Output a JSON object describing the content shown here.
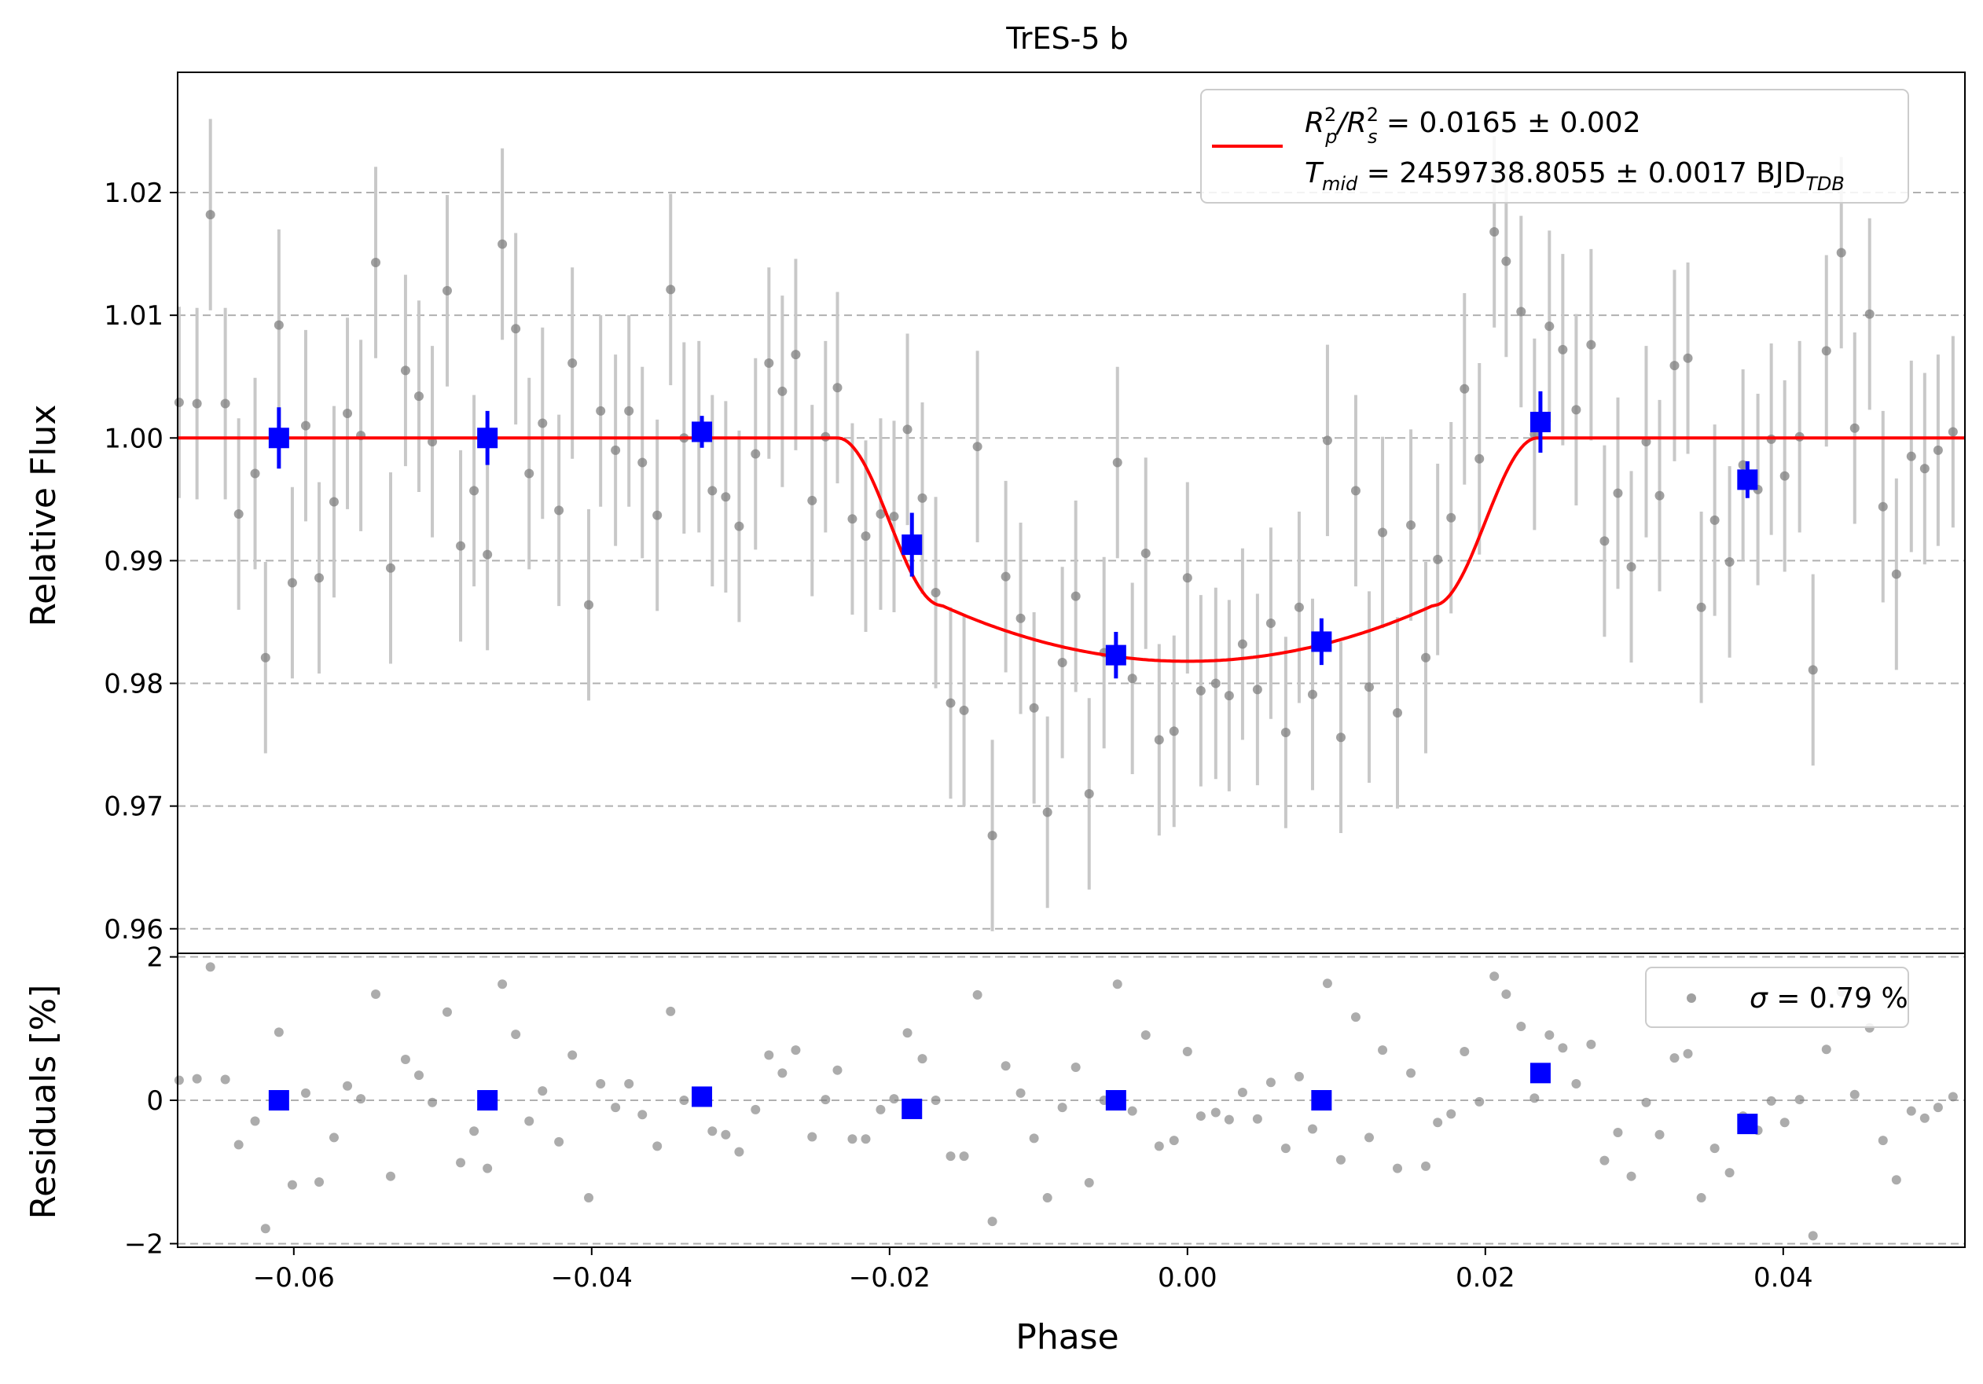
{
  "chart_data": {
    "type": "scatter",
    "title": "TrES-5 b",
    "xlabel": "Phase",
    "ylabel_top": "Relative Flux",
    "ylabel_bottom": "Residuals [%]",
    "xlim": [
      -0.0678,
      0.0522
    ],
    "ylim_top": [
      0.958,
      1.0298
    ],
    "ylim_bottom": [
      -2.05,
      2.05
    ],
    "x_ticks": [
      -0.06,
      -0.04,
      -0.02,
      0.0,
      0.02,
      0.04
    ],
    "x_tick_labels": [
      "−0.06",
      "−0.04",
      "−0.02",
      "0.00",
      "0.02",
      "0.04"
    ],
    "y_ticks_top": [
      0.96,
      0.97,
      0.98,
      0.99,
      1.0,
      1.01,
      1.02
    ],
    "y_tick_labels_top": [
      "0.96",
      "0.97",
      "0.98",
      "0.99",
      "1.00",
      "1.01",
      "1.02"
    ],
    "y_ticks_bottom": [
      -2,
      0,
      2
    ],
    "y_tick_labels_bottom": [
      "−2",
      "0",
      "2"
    ],
    "grid": "horizontal dashed",
    "colors": {
      "data": "#808080",
      "errorbar": "#c8c8c8",
      "binned": "#0000ff",
      "model": "#ff0000",
      "grid": "#b0b0b0"
    },
    "legend_top": {
      "placement": "top-right",
      "line1_a": "R",
      "line1_a_sup": "2",
      "line1_a_sub": "p",
      "line1_b": "/R",
      "line1_b_sup": "2",
      "line1_b_sub": "s",
      "line1_value": " = 0.0165 ± 0.002",
      "line2_a": "T",
      "line2_a_sub": "mid",
      "line2_value": " = 2459738.8055 ± 0.0017 BJD",
      "line2_value_sub": "TDB"
    },
    "legend_bottom": {
      "placement": "top-right",
      "sigma": "σ",
      "label": " = 0.79 %"
    },
    "raw_points": [
      [
        -0.0677,
        1.0029,
        0.28
      ],
      [
        -0.0665,
        1.0028,
        0.3
      ],
      [
        -0.0656,
        1.0182,
        1.86
      ],
      [
        -0.0646,
        1.0028,
        0.29
      ],
      [
        -0.0637,
        0.9938,
        -0.62
      ],
      [
        -0.0626,
        0.9971,
        -0.29
      ],
      [
        -0.0619,
        0.9821,
        -1.79
      ],
      [
        -0.061,
        1.0092,
        0.95
      ],
      [
        -0.0601,
        0.9882,
        -1.18
      ],
      [
        -0.0592,
        1.001,
        0.1
      ],
      [
        -0.0583,
        0.9886,
        -1.14
      ],
      [
        -0.0573,
        0.9948,
        -0.52
      ],
      [
        -0.0564,
        1.002,
        0.2
      ],
      [
        -0.0555,
        1.0002,
        0.02
      ],
      [
        -0.0545,
        1.0143,
        1.48
      ],
      [
        -0.0535,
        0.9894,
        -1.06
      ],
      [
        -0.0525,
        1.0055,
        0.57
      ],
      [
        -0.0516,
        1.0034,
        0.35
      ],
      [
        -0.0507,
        0.9997,
        -0.03
      ],
      [
        -0.0497,
        1.012,
        1.23
      ],
      [
        -0.0488,
        0.9912,
        -0.87
      ],
      [
        -0.0479,
        0.9957,
        -0.43
      ],
      [
        -0.047,
        0.9905,
        -0.95
      ],
      [
        -0.046,
        1.0158,
        1.62
      ],
      [
        -0.0451,
        1.0089,
        0.92
      ],
      [
        -0.0442,
        0.9971,
        -0.29
      ],
      [
        -0.0433,
        1.0012,
        0.13
      ],
      [
        -0.0422,
        0.9941,
        -0.58
      ],
      [
        -0.0413,
        1.0061,
        0.63
      ],
      [
        -0.0402,
        0.9864,
        -1.36
      ],
      [
        -0.0394,
        1.0022,
        0.23
      ],
      [
        -0.0384,
        0.999,
        -0.1
      ],
      [
        -0.0375,
        1.0022,
        0.23
      ],
      [
        -0.0366,
        0.998,
        -0.2
      ],
      [
        -0.0356,
        0.9937,
        -0.64
      ],
      [
        -0.0347,
        1.0121,
        1.24
      ],
      [
        -0.0338,
        1.0,
        0.0
      ],
      [
        -0.0328,
        1.0001,
        0.01
      ],
      [
        -0.0319,
        0.9957,
        -0.43
      ],
      [
        -0.031,
        0.9952,
        -0.48
      ],
      [
        -0.0301,
        0.9928,
        -0.72
      ],
      [
        -0.029,
        0.9987,
        -0.13
      ],
      [
        -0.0281,
        1.0061,
        0.63
      ],
      [
        -0.0272,
        1.0038,
        0.38
      ],
      [
        -0.0263,
        1.0068,
        0.7
      ],
      [
        -0.0252,
        0.9949,
        -0.51
      ],
      [
        -0.0243,
        1.0001,
        0.01
      ],
      [
        -0.0235,
        1.0041,
        0.42
      ],
      [
        -0.0225,
        0.9934,
        -0.54
      ],
      [
        -0.0216,
        0.992,
        -0.54
      ],
      [
        -0.0206,
        0.9938,
        -0.13
      ],
      [
        -0.0197,
        0.9936,
        0.02
      ],
      [
        -0.0188,
        1.0007,
        0.94
      ],
      [
        -0.0178,
        0.9951,
        0.58
      ],
      [
        -0.0169,
        0.9874,
        0.0
      ],
      [
        -0.0159,
        0.9784,
        -0.78
      ],
      [
        -0.015,
        0.9778,
        -0.78
      ],
      [
        -0.0141,
        0.9993,
        1.47
      ],
      [
        -0.0131,
        0.9676,
        -1.69
      ],
      [
        -0.0122,
        0.9887,
        0.48
      ],
      [
        -0.0112,
        0.9853,
        0.1
      ],
      [
        -0.0103,
        0.978,
        -0.53
      ],
      [
        -0.0094,
        0.9695,
        -1.36
      ],
      [
        -0.0084,
        0.9817,
        -0.1
      ],
      [
        -0.0075,
        0.9871,
        0.46
      ],
      [
        -0.0066,
        0.971,
        -1.15
      ],
      [
        -0.0056,
        0.9825,
        0.0
      ],
      [
        -0.0047,
        0.998,
        1.62
      ],
      [
        -0.0037,
        0.9804,
        -0.15
      ],
      [
        -0.0028,
        0.9906,
        0.91
      ],
      [
        -0.0019,
        0.9754,
        -0.64
      ],
      [
        -0.0009,
        0.9761,
        -0.56
      ],
      [
        0.0,
        0.9886,
        0.68
      ],
      [
        0.0009,
        0.9794,
        -0.22
      ],
      [
        0.0019,
        0.98,
        -0.17
      ],
      [
        0.0028,
        0.979,
        -0.27
      ],
      [
        0.0037,
        0.9832,
        0.11
      ],
      [
        0.0047,
        0.9795,
        -0.26
      ],
      [
        0.0056,
        0.9849,
        0.25
      ],
      [
        0.0066,
        0.976,
        -0.67
      ],
      [
        0.0075,
        0.9862,
        0.33
      ],
      [
        0.0084,
        0.9791,
        -0.4
      ],
      [
        0.0094,
        0.9998,
        1.63
      ],
      [
        0.0103,
        0.9756,
        -0.83
      ],
      [
        0.0113,
        0.9957,
        1.16
      ],
      [
        0.0122,
        0.9797,
        -0.52
      ],
      [
        0.0131,
        0.9923,
        0.7
      ],
      [
        0.0141,
        0.9776,
        -0.95
      ],
      [
        0.015,
        0.9929,
        0.38
      ],
      [
        0.016,
        0.9821,
        -0.92
      ],
      [
        0.0168,
        0.9901,
        -0.31
      ],
      [
        0.0177,
        0.9935,
        -0.19
      ],
      [
        0.0186,
        1.004,
        0.68
      ],
      [
        0.0196,
        0.9983,
        -0.02
      ],
      [
        0.0206,
        1.0168,
        1.73
      ],
      [
        0.0214,
        1.0144,
        1.48
      ],
      [
        0.0224,
        1.0103,
        1.03
      ],
      [
        0.0233,
        1.0003,
        0.03
      ],
      [
        0.0243,
        1.0091,
        0.91
      ],
      [
        0.0252,
        1.0072,
        0.73
      ],
      [
        0.0261,
        1.0023,
        0.23
      ],
      [
        0.0271,
        1.0076,
        0.78
      ],
      [
        0.028,
        0.9916,
        -0.84
      ],
      [
        0.0289,
        0.9955,
        -0.45
      ],
      [
        0.0298,
        0.9895,
        -1.06
      ],
      [
        0.0308,
        0.9997,
        -0.03
      ],
      [
        0.0317,
        0.9953,
        -0.48
      ],
      [
        0.0327,
        1.0059,
        0.59
      ],
      [
        0.0336,
        1.0065,
        0.65
      ],
      [
        0.0345,
        0.9862,
        -1.36
      ],
      [
        0.0354,
        0.9933,
        -0.67
      ],
      [
        0.0364,
        0.9899,
        -1.01
      ],
      [
        0.0373,
        0.9978,
        -0.22
      ],
      [
        0.0383,
        0.9958,
        -0.42
      ],
      [
        0.0392,
        0.9999,
        -0.01
      ],
      [
        0.0401,
        0.9969,
        -0.31
      ],
      [
        0.0411,
        1.0001,
        0.01
      ],
      [
        0.042,
        0.9811,
        -1.89
      ],
      [
        0.0429,
        1.0071,
        0.71
      ],
      [
        0.0439,
        1.0151,
        1.51
      ],
      [
        0.0448,
        1.0008,
        0.08
      ],
      [
        0.0458,
        1.0101,
        1.01
      ],
      [
        0.0467,
        0.9944,
        -0.56
      ],
      [
        0.0476,
        0.9889,
        -1.11
      ],
      [
        0.0486,
        0.9985,
        -0.15
      ],
      [
        0.0495,
        0.9975,
        -0.25
      ],
      [
        0.0504,
        0.999,
        -0.1
      ],
      [
        0.0514,
        1.0005,
        0.05
      ]
    ],
    "raw_error": 0.0078,
    "binned_points": [
      [
        -0.061,
        1.0,
        0.0,
        0.0025
      ],
      [
        -0.047,
        1.0,
        0.0,
        0.0022
      ],
      [
        -0.0326,
        1.0005,
        0.05,
        0.0013
      ],
      [
        -0.0185,
        0.9913,
        -0.12,
        0.0026
      ],
      [
        -0.0048,
        0.9823,
        0.0,
        0.0019
      ],
      [
        0.009,
        0.9834,
        0.0,
        0.0019
      ],
      [
        0.0237,
        1.0013,
        0.38,
        0.0025
      ],
      [
        0.0376,
        0.9966,
        -0.33,
        0.0015
      ]
    ],
    "model": {
      "type": "transit",
      "depth_ppm_mid": 0.0182,
      "t1": -0.0235,
      "t2": -0.0165,
      "t3": 0.0165,
      "t4": 0.0235
    }
  }
}
